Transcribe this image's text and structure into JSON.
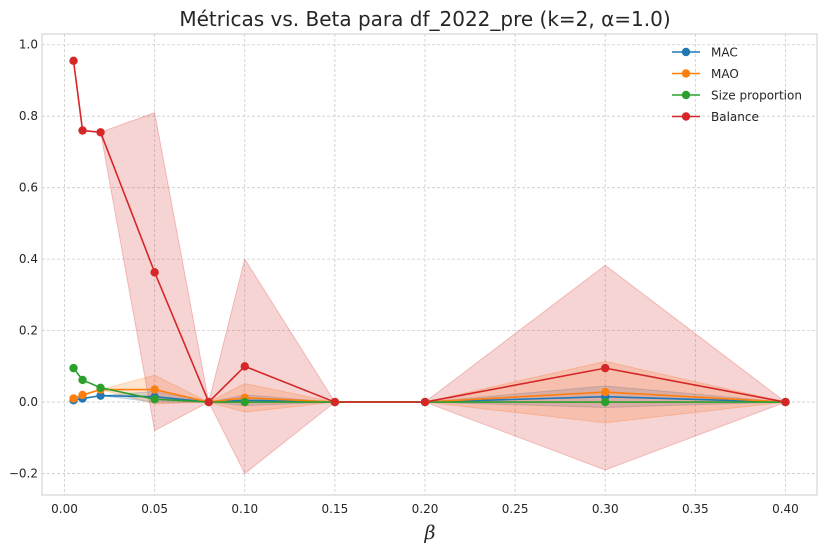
{
  "chart_data": {
    "type": "line",
    "title": "Métricas vs. Beta para df_2022_pre (k=2, α=1.0)",
    "xlabel": "β",
    "ylabel": "",
    "xlim": [
      -0.0125,
      0.4175
    ],
    "ylim": [
      -0.26,
      1.03
    ],
    "x_ticks": [
      "0.00",
      "0.05",
      "0.10",
      "0.15",
      "0.20",
      "0.25",
      "0.30",
      "0.35",
      "0.40"
    ],
    "y_ticks": [
      "−0.2",
      "0.0",
      "0.2",
      "0.4",
      "0.6",
      "0.8",
      "1.0"
    ],
    "x_tick_values": [
      0.0,
      0.05,
      0.1,
      0.15,
      0.2,
      0.25,
      0.3,
      0.35,
      0.4
    ],
    "y_tick_values": [
      -0.2,
      0.0,
      0.2,
      0.4,
      0.6,
      0.8,
      1.0
    ],
    "grid": true,
    "legend_position": "top-right",
    "x": [
      0.005,
      0.01,
      0.02,
      0.05,
      0.08,
      0.1,
      0.15,
      0.2,
      0.3,
      0.4
    ],
    "series": [
      {
        "name": "MAC",
        "color": "#1f77b4",
        "values": [
          0.005,
          0.01,
          0.018,
          0.015,
          0.0,
          0.005,
          0.0,
          0.0,
          0.015,
          0.0
        ],
        "lower": [
          0.005,
          0.01,
          0.018,
          0.0,
          0.0,
          -0.01,
          0.0,
          0.0,
          -0.015,
          0.0
        ],
        "upper": [
          0.005,
          0.01,
          0.018,
          0.03,
          0.0,
          0.02,
          0.0,
          0.0,
          0.045,
          0.0
        ]
      },
      {
        "name": "MAO",
        "color": "#ff7f0e",
        "values": [
          0.01,
          0.02,
          0.035,
          0.035,
          0.0,
          0.012,
          0.0,
          0.0,
          0.028,
          0.0
        ],
        "lower": [
          0.01,
          0.02,
          0.035,
          -0.005,
          0.0,
          -0.028,
          0.0,
          0.0,
          -0.058,
          0.0
        ],
        "upper": [
          0.01,
          0.02,
          0.035,
          0.075,
          0.0,
          0.052,
          0.0,
          0.0,
          0.114,
          0.0
        ]
      },
      {
        "name": "Size proportion",
        "color": "#2ca02c",
        "values": [
          0.095,
          0.062,
          0.04,
          0.008,
          0.0,
          0.0,
          0.0,
          0.0,
          0.0,
          0.0
        ],
        "lower": [
          0.095,
          0.062,
          0.04,
          0.008,
          0.0,
          0.0,
          0.0,
          0.0,
          0.0,
          0.0
        ],
        "upper": [
          0.095,
          0.062,
          0.04,
          0.008,
          0.0,
          0.0,
          0.0,
          0.0,
          0.0,
          0.0
        ]
      },
      {
        "name": "Balance",
        "color": "#d62728",
        "values": [
          0.955,
          0.76,
          0.755,
          0.363,
          0.0,
          0.1,
          0.0,
          0.0,
          0.095,
          0.0
        ],
        "lower": [
          0.955,
          0.76,
          0.755,
          -0.08,
          0.0,
          -0.2,
          0.0,
          0.0,
          -0.19,
          0.0
        ],
        "upper": [
          0.955,
          0.76,
          0.755,
          0.81,
          0.0,
          0.4,
          0.0,
          0.0,
          0.383,
          0.0
        ]
      }
    ]
  }
}
